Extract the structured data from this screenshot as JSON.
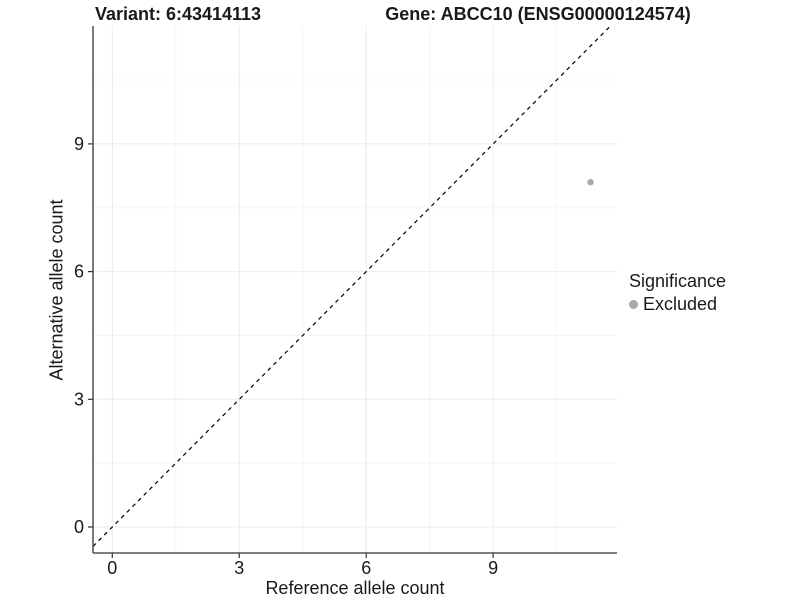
{
  "chart_data": {
    "type": "scatter",
    "title_left": "Variant: 6:43414113",
    "title_right": "Gene: ABCC10 (ENSG00000124574)",
    "xlabel": "Reference allele count",
    "ylabel": "Alternative allele count",
    "xlim": [
      -0.456,
      11.926
    ],
    "ylim": [
      -0.611,
      11.77
    ],
    "xticks": [
      0,
      3,
      6,
      9
    ],
    "yticks": [
      0,
      3,
      6,
      9
    ],
    "minor_xticks": [
      1.5,
      4.5,
      7.5,
      10.5
    ],
    "minor_yticks": [
      1.5,
      4.5,
      7.5,
      10.5
    ],
    "grid": "major and minor gridlines on, white background",
    "series": [
      {
        "name": "Excluded",
        "color": "#a8a8a8",
        "points": [
          {
            "x": 11.3,
            "y": 8.1
          }
        ]
      }
    ],
    "reference_line": {
      "description": "identity line y = x",
      "style": "dashed",
      "color": "#000000"
    },
    "legend": {
      "title": "Significance",
      "position": "right",
      "items": [
        {
          "label": "Excluded",
          "color": "#a8a8a8"
        }
      ]
    }
  },
  "colors": {
    "background": "#ffffff",
    "grid_major": "#ebebeb",
    "grid_minor": "#f5f5f5",
    "axis_line": "#333333",
    "tick_mark": "#333333",
    "text": "#1a1a1a",
    "point": "#a8a8a8"
  }
}
